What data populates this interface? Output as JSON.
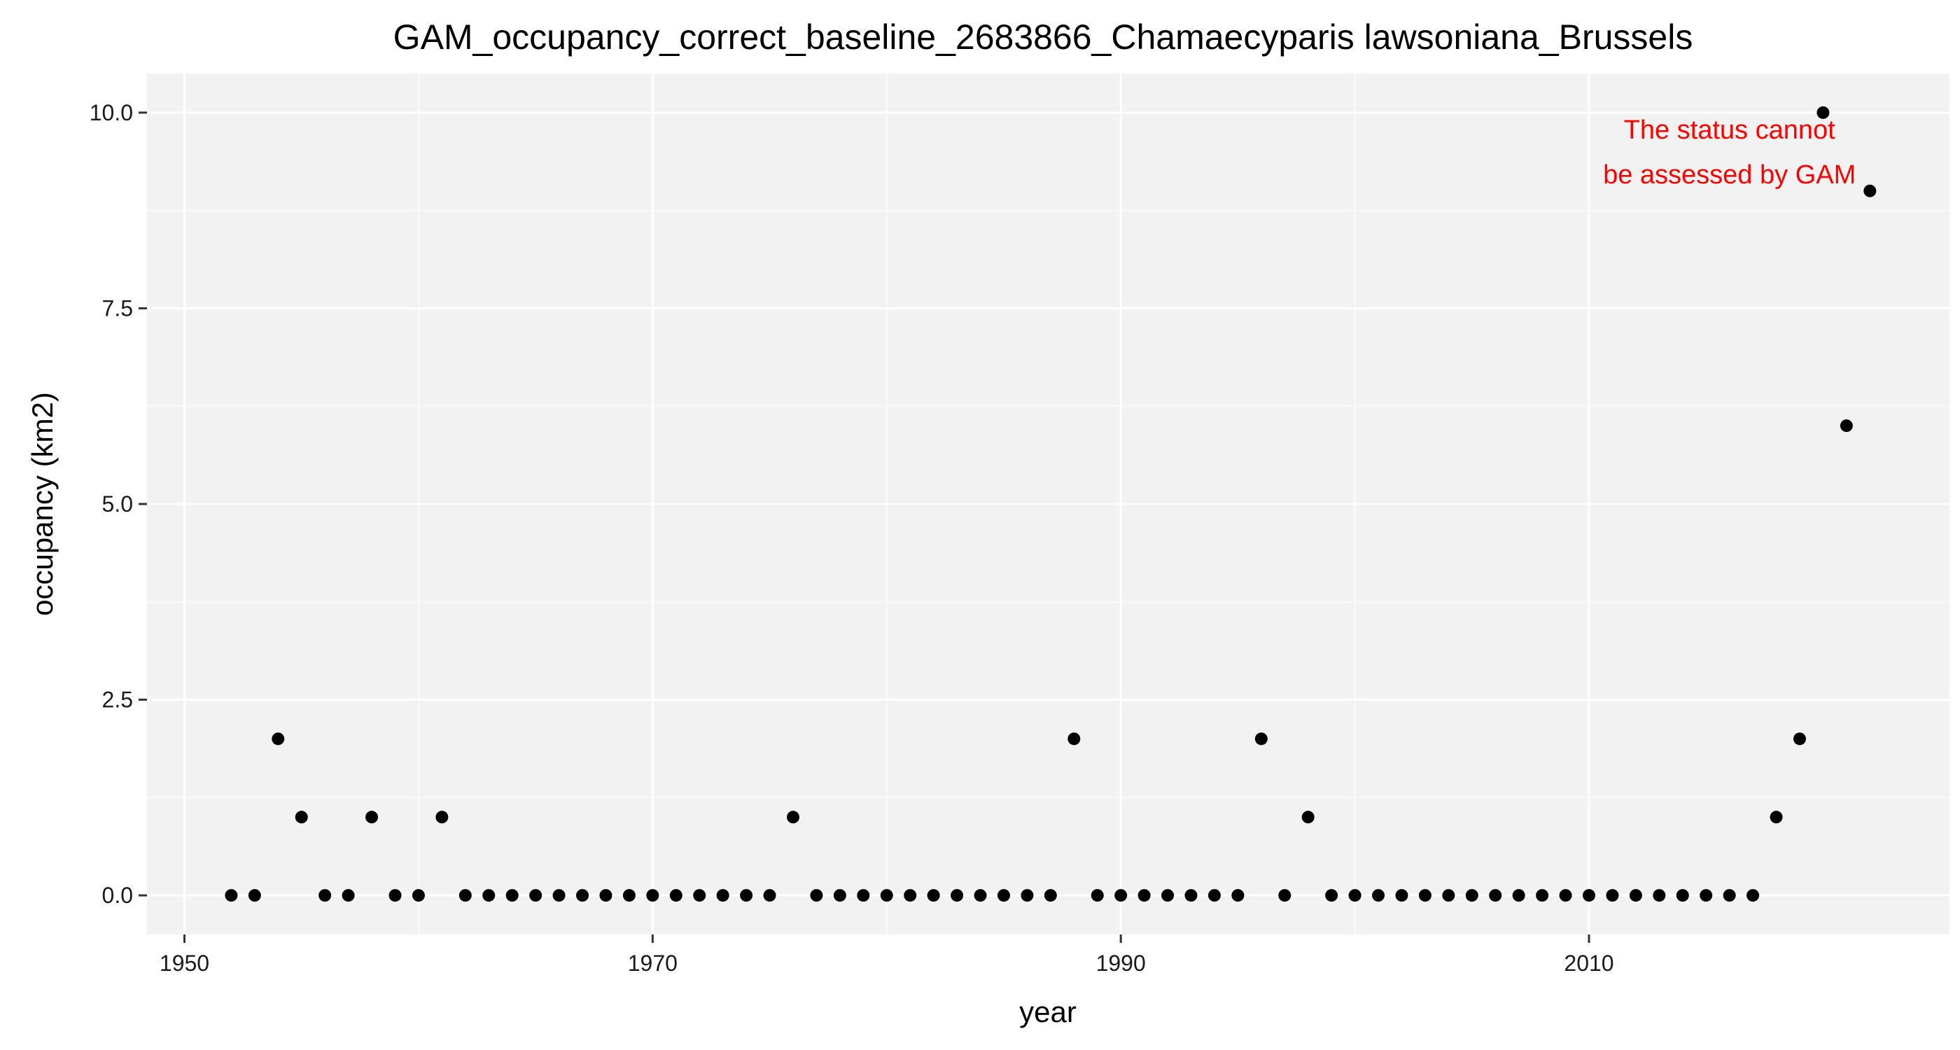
{
  "chart_data": {
    "type": "scatter",
    "title": "GAM_occupancy_correct_baseline_2683866_Chamaecyparis lawsoniana_Brussels",
    "xlabel": "year",
    "ylabel": "occupancy (km2)",
    "xlim": [
      1948.4,
      2025.4
    ],
    "ylim": [
      -0.5,
      10.5
    ],
    "x_ticks": [
      1950,
      1970,
      1990,
      2010
    ],
    "x_tick_labels": [
      "1950",
      "1970",
      "1990",
      "2010"
    ],
    "y_ticks": [
      0,
      2.5,
      5,
      7.5,
      10
    ],
    "y_tick_labels": [
      "0.0",
      "2.5",
      "5.0",
      "7.5",
      "10.0"
    ],
    "grid": true,
    "legend": "none",
    "colors": {
      "panel_background": "#f2f2f2",
      "grid_major": "#ffffff",
      "grid_minor": "#fafafa",
      "point": "#000000",
      "annotation": "#ff0000"
    },
    "series": [
      {
        "x": [
          1952,
          1953,
          1954,
          1955,
          1956,
          1957,
          1958,
          1959,
          1960,
          1961,
          1962,
          1963,
          1964,
          1965,
          1966,
          1967,
          1968,
          1969,
          1970,
          1971,
          1972,
          1973,
          1974,
          1975,
          1976,
          1977,
          1978,
          1979,
          1980,
          1981,
          1982,
          1983,
          1984,
          1985,
          1986,
          1987,
          1988,
          1989,
          1990,
          1991,
          1992,
          1993,
          1994,
          1995,
          1996,
          1997,
          1998,
          1999,
          2000,
          2001,
          2002,
          2003,
          2004,
          2005,
          2006,
          2007,
          2008,
          2009,
          2010,
          2011,
          2012,
          2013,
          2014,
          2015,
          2016,
          2017,
          2018,
          2019,
          2020,
          2021,
          2022
        ],
        "y": [
          0,
          0,
          2,
          1,
          0,
          0,
          1,
          0,
          0,
          1,
          0,
          0,
          0,
          0,
          0,
          0,
          0,
          0,
          0,
          0,
          0,
          0,
          0,
          0,
          1,
          0,
          0,
          0,
          0,
          0,
          0,
          0,
          0,
          0,
          0,
          0,
          2,
          0,
          0,
          0,
          0,
          0,
          0,
          0,
          2,
          0,
          1,
          0,
          0,
          0,
          0,
          0,
          0,
          0,
          0,
          0,
          0,
          0,
          0,
          0,
          0,
          0,
          0,
          0,
          0,
          0,
          1,
          2,
          10,
          6,
          9
        ]
      }
    ],
    "annotation": {
      "lines": [
        "The status cannot",
        "be assessed by GAM"
      ],
      "x": 2016,
      "y": 9.5,
      "color": "#ff0000"
    }
  }
}
